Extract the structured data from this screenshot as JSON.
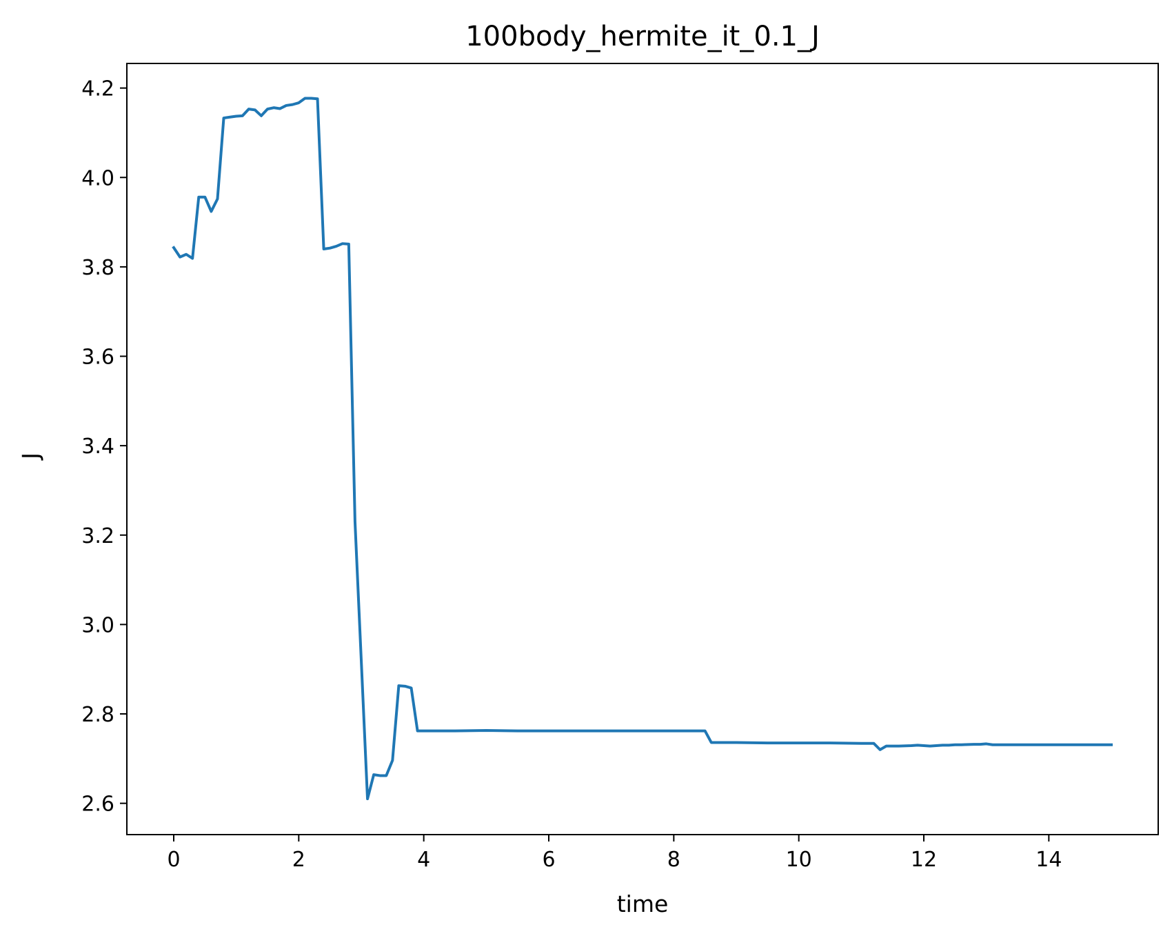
{
  "chart_data": {
    "type": "line",
    "title": "100body_hermite_it_0.1_J",
    "xlabel": "time",
    "ylabel": "J",
    "xlim": [
      -0.75,
      15.75
    ],
    "ylim": [
      2.53,
      4.255
    ],
    "xticks": [
      0,
      2,
      4,
      6,
      8,
      10,
      12,
      14
    ],
    "xtick_labels": [
      "0",
      "2",
      "4",
      "6",
      "8",
      "10",
      "12",
      "14"
    ],
    "yticks": [
      2.6,
      2.8,
      3.0,
      3.2,
      3.4,
      3.6,
      3.8,
      4.0,
      4.2
    ],
    "ytick_labels": [
      "2.6",
      "2.8",
      "3.0",
      "3.2",
      "3.4",
      "3.6",
      "3.8",
      "4.0",
      "4.2"
    ],
    "grid": false,
    "legend": "none",
    "series": [
      {
        "color": "#1f77b4",
        "x": [
          0.0,
          0.1,
          0.2,
          0.3,
          0.4,
          0.5,
          0.6,
          0.7,
          0.8,
          0.9,
          1.0,
          1.1,
          1.2,
          1.3,
          1.4,
          1.5,
          1.6,
          1.7,
          1.8,
          1.9,
          2.0,
          2.1,
          2.2,
          2.3,
          2.4,
          2.5,
          2.6,
          2.7,
          2.8,
          2.9,
          3.0,
          3.1,
          3.2,
          3.3,
          3.4,
          3.5,
          3.6,
          3.7,
          3.8,
          3.9,
          4.0,
          4.5,
          5.0,
          5.5,
          6.0,
          6.5,
          7.0,
          7.5,
          8.0,
          8.5,
          8.6,
          9.0,
          9.5,
          10.0,
          10.5,
          11.0,
          11.2,
          11.3,
          11.4,
          11.6,
          11.8,
          11.9,
          12.0,
          12.1,
          12.2,
          12.3,
          12.4,
          12.5,
          12.6,
          12.8,
          12.9,
          13.0,
          13.1,
          13.5,
          14.0,
          14.5,
          15.0
        ],
        "y": [
          3.843,
          3.822,
          3.828,
          3.819,
          3.956,
          3.956,
          3.924,
          3.952,
          4.133,
          4.135,
          4.137,
          4.138,
          4.153,
          4.151,
          4.138,
          4.153,
          4.156,
          4.154,
          4.161,
          4.163,
          4.167,
          4.177,
          4.177,
          4.176,
          3.84,
          3.842,
          3.846,
          3.852,
          3.851,
          3.23,
          2.92,
          2.61,
          2.664,
          2.662,
          2.662,
          2.696,
          2.863,
          2.862,
          2.858,
          2.762,
          2.762,
          2.762,
          2.763,
          2.762,
          2.762,
          2.762,
          2.762,
          2.762,
          2.762,
          2.762,
          2.736,
          2.736,
          2.735,
          2.735,
          2.735,
          2.734,
          2.734,
          2.72,
          2.728,
          2.728,
          2.729,
          2.73,
          2.729,
          2.728,
          2.729,
          2.73,
          2.73,
          2.731,
          2.731,
          2.732,
          2.732,
          2.733,
          2.731,
          2.731,
          2.731,
          2.731,
          2.731
        ]
      }
    ]
  }
}
